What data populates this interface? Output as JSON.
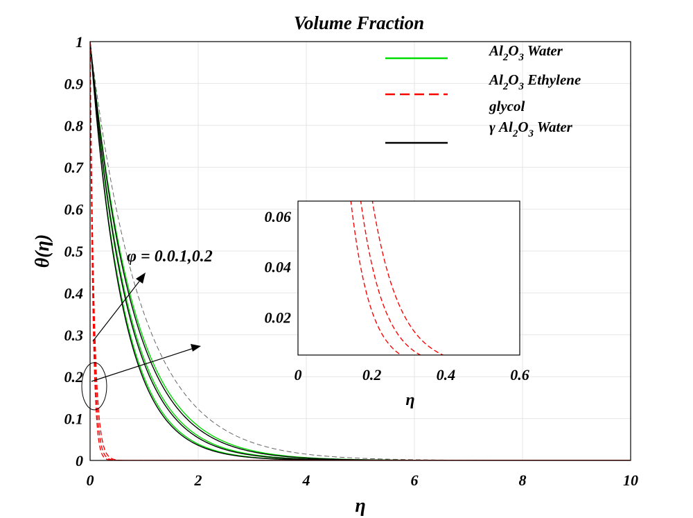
{
  "chart_data": {
    "type": "line",
    "title": "Volume Fraction",
    "xlabel": "η",
    "ylabel": "θ(η)",
    "xlim": [
      0,
      10
    ],
    "ylim": [
      0,
      1
    ],
    "xticks": [
      "0",
      "2",
      "4",
      "6",
      "8",
      "10"
    ],
    "yticks": [
      "0",
      "0.1",
      "0.2",
      "0.3",
      "0.4",
      "0.5",
      "0.6",
      "0.7",
      "0.8",
      "0.9",
      "1"
    ],
    "grid": true,
    "legend_position": "top-right",
    "legend": [
      {
        "base": "Al",
        "sub1": "2",
        "mid": "O",
        "sub2": "3",
        "tail": " Water",
        "color": "#00dd00",
        "dash": "solid"
      },
      {
        "base": "Al",
        "sub1": "2",
        "mid": "O",
        "sub2": "3",
        "tail": " Ethylene",
        "extra_line": "glycol",
        "color": "#ff0000",
        "dash": "dashed"
      },
      {
        "prefix": "γ ",
        "base": "Al",
        "sub1": "2",
        "mid": "O",
        "sub2": "3",
        "tail": " Water",
        "color": "#000000",
        "dash": "solid"
      }
    ],
    "annotation": "φ = 0.0.1,0.2",
    "series": [
      {
        "group": "Al2O3 Water",
        "color": "#00dd00",
        "dash": "solid",
        "decay": [
          1.62,
          1.42,
          1.25
        ],
        "phi": [
          "0",
          "0.1",
          "0.2"
        ]
      },
      {
        "group": "γ Al2O3 Water",
        "color": "#000000",
        "dash": "solid",
        "decay": [
          1.66,
          1.46,
          1.29
        ],
        "phi": [
          "0",
          "0.1",
          "0.2"
        ]
      },
      {
        "group": "γ Al2O3 Water (faint)",
        "color": "#555555",
        "dash": "dashed",
        "decay": [
          1.05
        ],
        "phi": [
          "0.2"
        ]
      },
      {
        "group": "Al2O3 Ethylene glycol",
        "color": "#ff0000",
        "dash": "dashed",
        "decay": [
          19.0,
          16.0,
          13.5
        ],
        "phi": [
          "0",
          "0.1",
          "0.2"
        ]
      }
    ],
    "inset": {
      "xlabel": "η",
      "xlim": [
        0,
        0.6
      ],
      "ylim": [
        0.005,
        0.066
      ],
      "xticks": [
        "0",
        "0.2",
        "0.4",
        "0.6"
      ],
      "yticks": [
        "0.02",
        "0.04",
        "0.06"
      ],
      "series": [
        {
          "color": "#ff0000",
          "dash": "dashed",
          "decay": 19.0
        },
        {
          "color": "#ff0000",
          "dash": "dashed",
          "decay": 16.0
        },
        {
          "color": "#ff0000",
          "dash": "dashed",
          "decay": 13.5
        }
      ]
    }
  }
}
